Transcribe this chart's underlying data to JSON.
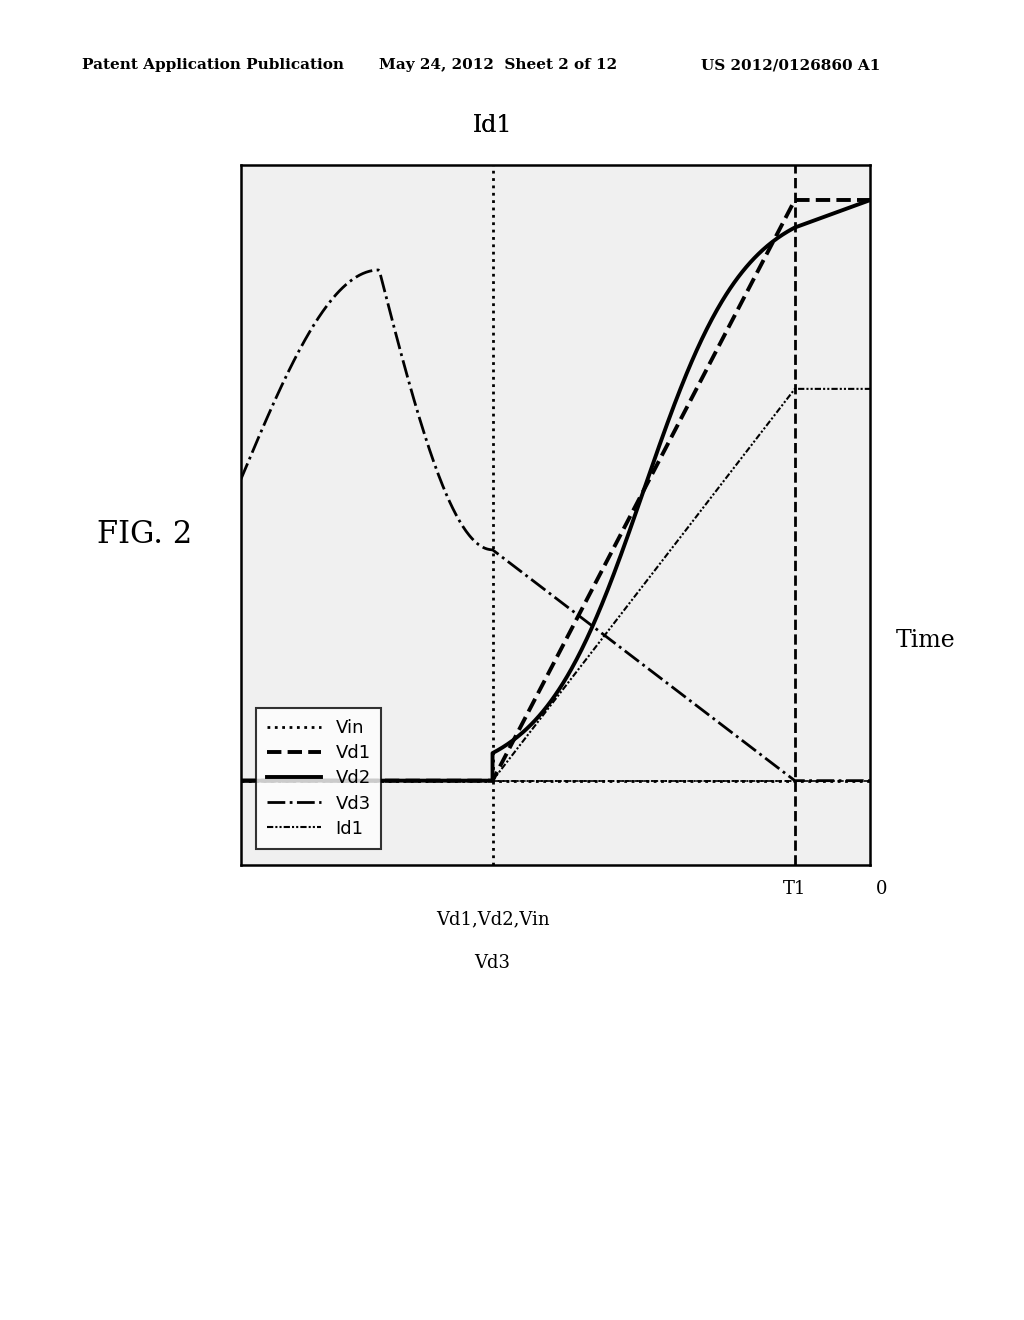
{
  "header_left": "Patent Application Publication",
  "header_mid": "May 24, 2012  Sheet 2 of 12",
  "header_right": "US 2012/0126860 A1",
  "fig_label": "FIG. 2",
  "xlabel": "Time",
  "ylabel_top": "Id1",
  "ylabel_bottom_line1": "Vd1,Vd2,Vin",
  "ylabel_bottom_line2": "Vd3",
  "origin_label": "0",
  "t1_label": "T1",
  "legend_entries": [
    "Vin",
    "Vd1",
    "Vd2",
    "Vd3",
    "Id1"
  ],
  "bg_color": "#ffffff",
  "plot_bg": "#f0f0f0",
  "T": 0.4,
  "T1": 0.88,
  "vd3_peak_t": 0.22,
  "lw": 2.0,
  "lw_solid": 2.8,
  "lw_thin": 1.5
}
